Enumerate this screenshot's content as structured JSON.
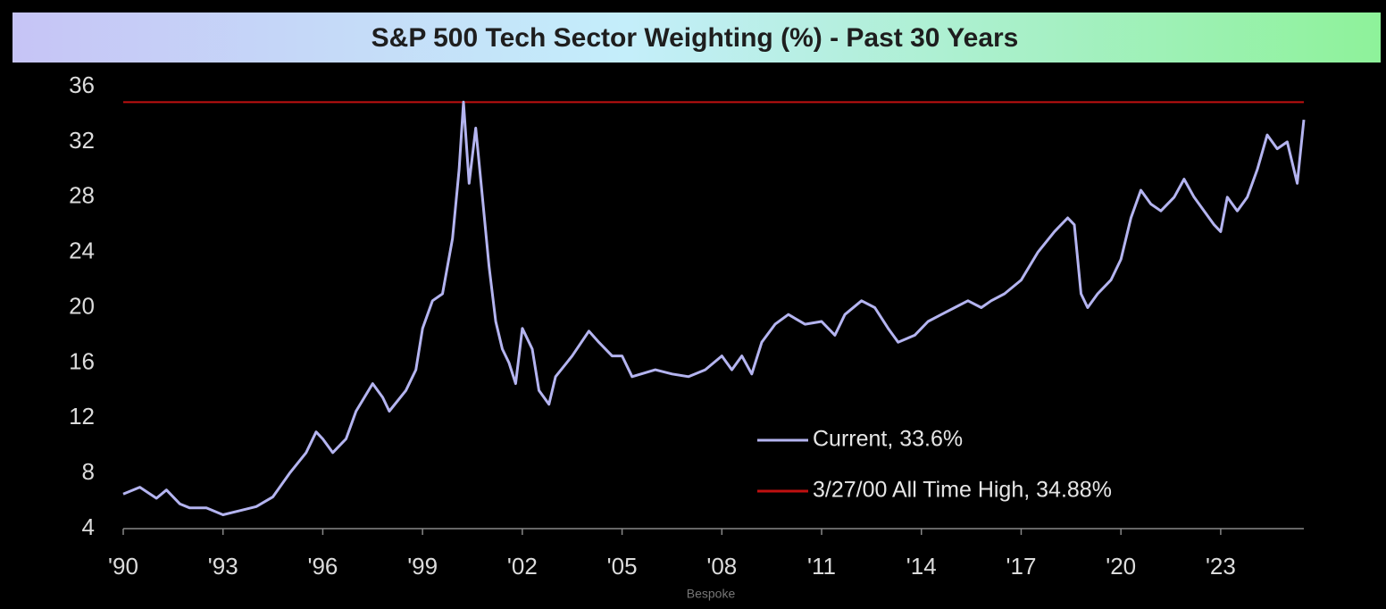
{
  "chart_data": {
    "type": "line",
    "title": "S&P 500 Tech Sector Weighting (%) - Past 30 Years",
    "source": "Bespoke",
    "xlim": [
      1990,
      2025.5
    ],
    "xticks": [
      {
        "value": 1990,
        "label": "'90"
      },
      {
        "value": 1993,
        "label": "'93"
      },
      {
        "value": 1996,
        "label": "'96"
      },
      {
        "value": 1999,
        "label": "'99"
      },
      {
        "value": 2002,
        "label": "'02"
      },
      {
        "value": 2005,
        "label": "'05"
      },
      {
        "value": 2008,
        "label": "'08"
      },
      {
        "value": 2011,
        "label": "'11"
      },
      {
        "value": 2014,
        "label": "'14"
      },
      {
        "value": 2017,
        "label": "'17"
      },
      {
        "value": 2020,
        "label": "'20"
      },
      {
        "value": 2023,
        "label": "'23"
      }
    ],
    "ylim": [
      4,
      36
    ],
    "yticks": [
      4,
      8,
      12,
      16,
      20,
      24,
      28,
      32,
      36
    ],
    "series": [
      {
        "name": "Current, 33.6%",
        "color": "#b4b4f0",
        "x": [
          1990,
          1990.5,
          1991,
          1991.3,
          1991.7,
          1992,
          1992.5,
          1993,
          1993.5,
          1994,
          1994.5,
          1995,
          1995.5,
          1995.8,
          1996,
          1996.3,
          1996.7,
          1997,
          1997.5,
          1997.8,
          1998,
          1998.5,
          1998.8,
          1999,
          1999.3,
          1999.6,
          1999.9,
          2000.1,
          2000.23,
          2000.4,
          2000.6,
          2000.8,
          2001,
          2001.2,
          2001.4,
          2001.6,
          2001.8,
          2002,
          2002.3,
          2002.5,
          2002.8,
          2003,
          2003.5,
          2004,
          2004.3,
          2004.7,
          2005,
          2005.3,
          2006,
          2006.5,
          2007,
          2007.5,
          2008,
          2008.3,
          2008.6,
          2008.9,
          2009.2,
          2009.6,
          2010,
          2010.5,
          2011,
          2011.4,
          2011.7,
          2012.2,
          2012.6,
          2013,
          2013.3,
          2013.8,
          2014.2,
          2014.6,
          2015,
          2015.4,
          2015.8,
          2016.1,
          2016.5,
          2017,
          2017.5,
          2018,
          2018.4,
          2018.6,
          2018.8,
          2019,
          2019.3,
          2019.7,
          2020,
          2020.3,
          2020.6,
          2020.9,
          2021.2,
          2021.6,
          2021.9,
          2022.2,
          2022.5,
          2022.8,
          2023,
          2023.2,
          2023.5,
          2023.8,
          2024.1,
          2024.4,
          2024.7,
          2025,
          2025.3,
          2025.5
        ],
        "values": [
          6.5,
          7,
          6.2,
          6.8,
          5.8,
          5.5,
          5.5,
          5.0,
          5.3,
          5.6,
          6.3,
          8.0,
          9.5,
          11,
          10.5,
          9.5,
          10.5,
          12.5,
          14.5,
          13.5,
          12.5,
          14,
          15.5,
          18.5,
          20.5,
          21,
          25,
          30,
          34.88,
          29,
          33,
          28,
          23,
          19,
          17,
          16,
          14.5,
          18.5,
          17,
          14,
          13,
          15,
          16.5,
          18.3,
          17.5,
          16.5,
          16.5,
          15,
          15.5,
          15.2,
          15,
          15.5,
          16.5,
          15.5,
          16.5,
          15.2,
          17.5,
          18.8,
          19.5,
          18.8,
          19,
          18,
          19.5,
          20.5,
          20,
          18.5,
          17.5,
          18,
          19,
          19.5,
          20,
          20.5,
          20,
          20.5,
          21,
          22,
          24,
          25.5,
          26.5,
          26,
          21,
          20,
          21,
          22,
          23.5,
          26.5,
          28.5,
          27.5,
          27,
          28,
          29.3,
          28,
          27,
          26,
          25.5,
          28,
          27,
          28,
          30,
          32.5,
          31.5,
          32,
          29,
          33.6
        ]
      }
    ],
    "hlines": [
      {
        "name": "3/27/00 All Time High, 34.88%",
        "color": "#c01010",
        "value": 34.88
      }
    ]
  }
}
